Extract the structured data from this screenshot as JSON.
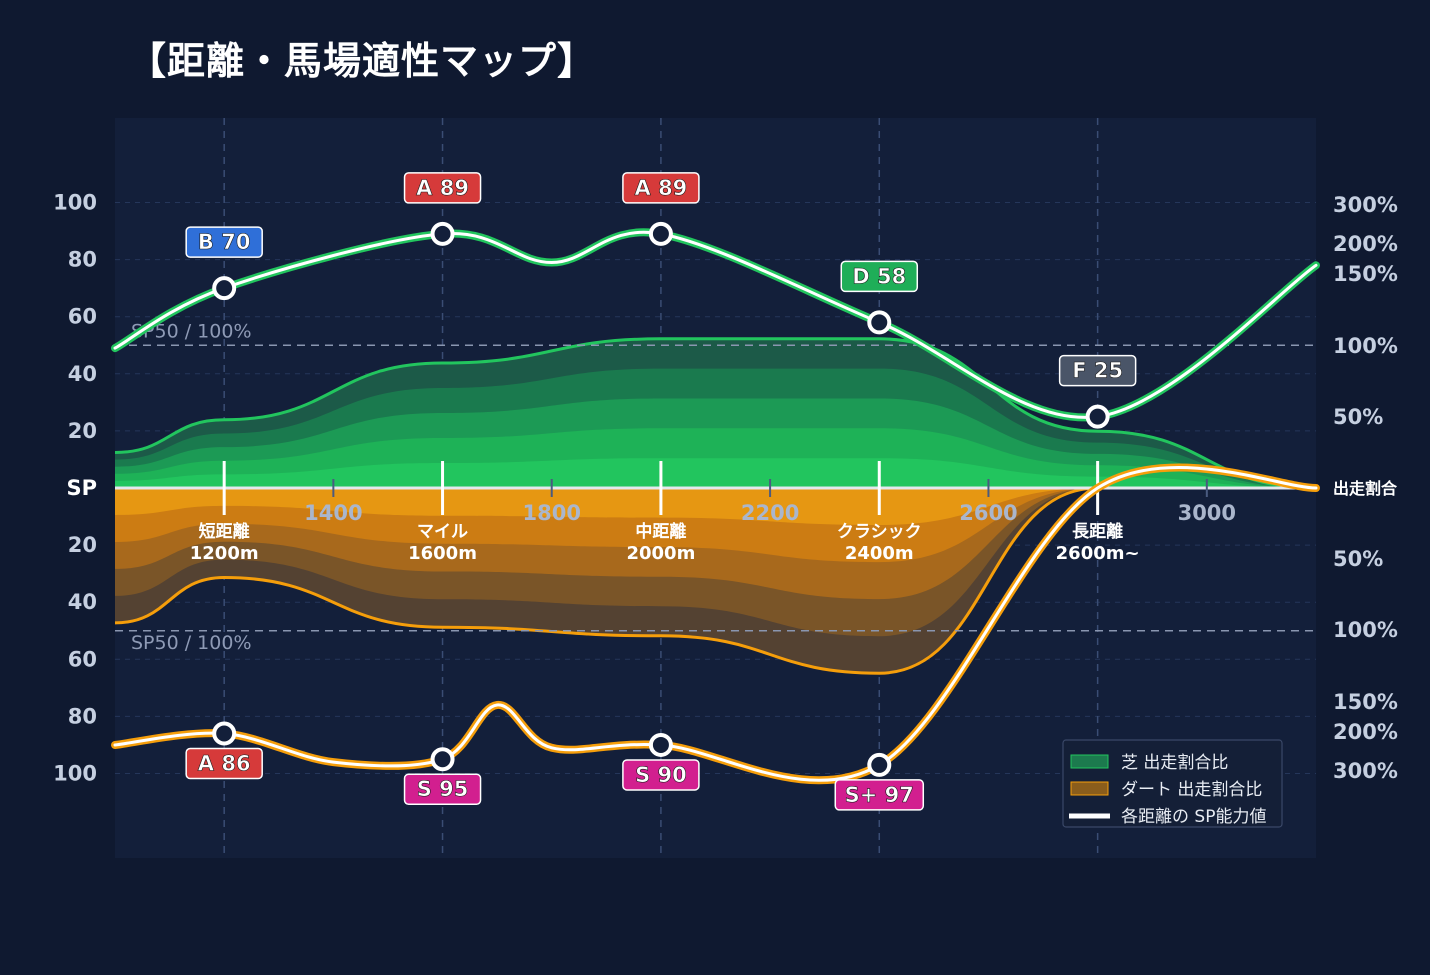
{
  "title": "【距離・馬場適性マップ】",
  "chart_data": {
    "type": "area",
    "x_tick_labels": [
      "1400",
      "1800",
      "2200",
      "2600",
      "3000"
    ],
    "x_ticks": [
      1400,
      1800,
      2200,
      2600,
      3000
    ],
    "xlim": [
      1000,
      3200
    ],
    "categories": [
      {
        "x": 1200,
        "name": "短距離",
        "dist": "1200m"
      },
      {
        "x": 1600,
        "name": "マイル",
        "dist": "1600m"
      },
      {
        "x": 2000,
        "name": "中距離",
        "dist": "2000m"
      },
      {
        "x": 2400,
        "name": "クラシック",
        "dist": "2400m"
      },
      {
        "x": 2800,
        "name": "長距離",
        "dist": "2600m~"
      }
    ],
    "left_axis": {
      "label": "SP",
      "ticks": [
        "100",
        "80",
        "60",
        "40",
        "20"
      ],
      "range": [
        0,
        100
      ]
    },
    "right_axis": {
      "label": "出走割合",
      "ticks_top": [
        "300%",
        "200%",
        "150%",
        "100%",
        "50%"
      ],
      "ticks_bottom": [
        "50%",
        "100%",
        "150%",
        "200%",
        "300%"
      ]
    },
    "reference_label": "SP50 / 100%",
    "series": [
      {
        "name": "芝 出走割合比",
        "color": "#22c55e",
        "x": [
          1000,
          1200,
          1600,
          2000,
          2400,
          2800,
          3200
        ],
        "share_percent": [
          25,
          48,
          88,
          105,
          105,
          40,
          0
        ],
        "sp_points": [
          {
            "x": 1200,
            "sp": 70,
            "grade": "B 70"
          },
          {
            "x": 1600,
            "sp": 89,
            "grade": "A 89"
          },
          {
            "x": 2000,
            "sp": 89,
            "grade": "A 89"
          },
          {
            "x": 2400,
            "sp": 58,
            "grade": "D 58"
          },
          {
            "x": 2800,
            "sp": 25,
            "grade": "F 25"
          }
        ],
        "sp_curve": [
          [
            1000,
            49
          ],
          [
            1200,
            70
          ],
          [
            1600,
            89
          ],
          [
            1800,
            79
          ],
          [
            2000,
            89
          ],
          [
            2400,
            58
          ],
          [
            2800,
            25
          ],
          [
            3200,
            78
          ]
        ]
      },
      {
        "name": "ダート 出走割合比",
        "color": "#f59e0b",
        "x": [
          1000,
          1200,
          1600,
          2000,
          2400,
          2800,
          3200
        ],
        "share_percent": [
          95,
          63,
          98,
          104,
          130,
          0,
          0
        ],
        "sp_points": [
          {
            "x": 1200,
            "sp": 86,
            "grade": "A 86"
          },
          {
            "x": 1600,
            "sp": 95,
            "grade": "S 95"
          },
          {
            "x": 2000,
            "sp": 90,
            "grade": "S 90"
          },
          {
            "x": 2400,
            "sp": 97,
            "grade": "S+ 97"
          }
        ],
        "sp_curve": [
          [
            1000,
            90
          ],
          [
            1200,
            86
          ],
          [
            1400,
            96
          ],
          [
            1600,
            95
          ],
          [
            1700,
            76
          ],
          [
            1800,
            91
          ],
          [
            2000,
            90
          ],
          [
            2400,
            97
          ],
          [
            2800,
            0
          ],
          [
            3200,
            0
          ]
        ]
      }
    ],
    "legend": [
      "芝 出走割合比",
      "ダート 出走割合比",
      "各距離の SP能力値"
    ],
    "legend_position": "bottom-right",
    "grid": true,
    "colors": {
      "background": "#0f1930",
      "plot": "#131f3a",
      "grade_S": "#d21f8f",
      "grade_A": "#d63a3a",
      "grade_B": "#2f6fd8",
      "grade_D": "#1fae58",
      "grade_F": "#4a5568"
    }
  }
}
